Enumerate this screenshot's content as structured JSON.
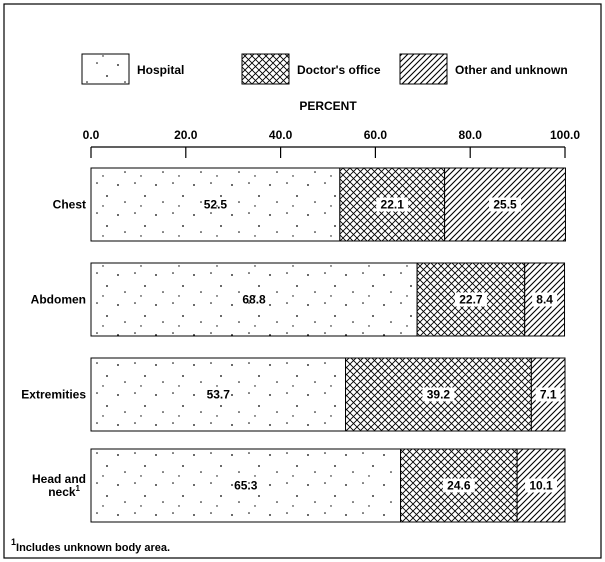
{
  "chart_data": {
    "type": "bar",
    "stacked": true,
    "orientation": "horizontal",
    "xlabel": "PERCENT",
    "xlim": [
      0,
      100
    ],
    "xticks": [
      0,
      20,
      40,
      60,
      80,
      100
    ],
    "xtick_labels": [
      "0.0",
      "20.0",
      "40.0",
      "60.0",
      "80.0",
      "100.0"
    ],
    "categories": [
      {
        "label_lines": [
          "Chest"
        ],
        "footnote": ""
      },
      {
        "label_lines": [
          "Abdomen"
        ],
        "footnote": ""
      },
      {
        "label_lines": [
          "Extremities"
        ],
        "footnote": ""
      },
      {
        "label_lines": [
          "Head and",
          "neck"
        ],
        "footnote": "1"
      }
    ],
    "series": [
      {
        "name": "Hospital",
        "pattern": "dots",
        "values": [
          52.5,
          68.8,
          53.7,
          65.3
        ],
        "labels": [
          "52.5",
          "68.8",
          "53.7",
          "65.3"
        ]
      },
      {
        "name": "Doctor's office",
        "pattern": "crosshatch",
        "values": [
          22.1,
          22.7,
          39.2,
          24.6
        ],
        "labels": [
          "22.1",
          "22.7",
          "39.2",
          "24.6"
        ]
      },
      {
        "name": "Other and unknown",
        "pattern": "diagonal",
        "values": [
          25.5,
          8.4,
          7.1,
          10.1
        ],
        "labels": [
          "25.5",
          "8.4",
          "7.1",
          "10.1"
        ]
      }
    ],
    "legend_position": "top",
    "grid": false,
    "footnote_marker": "1",
    "footnote_text": "Includes unknown body area."
  }
}
